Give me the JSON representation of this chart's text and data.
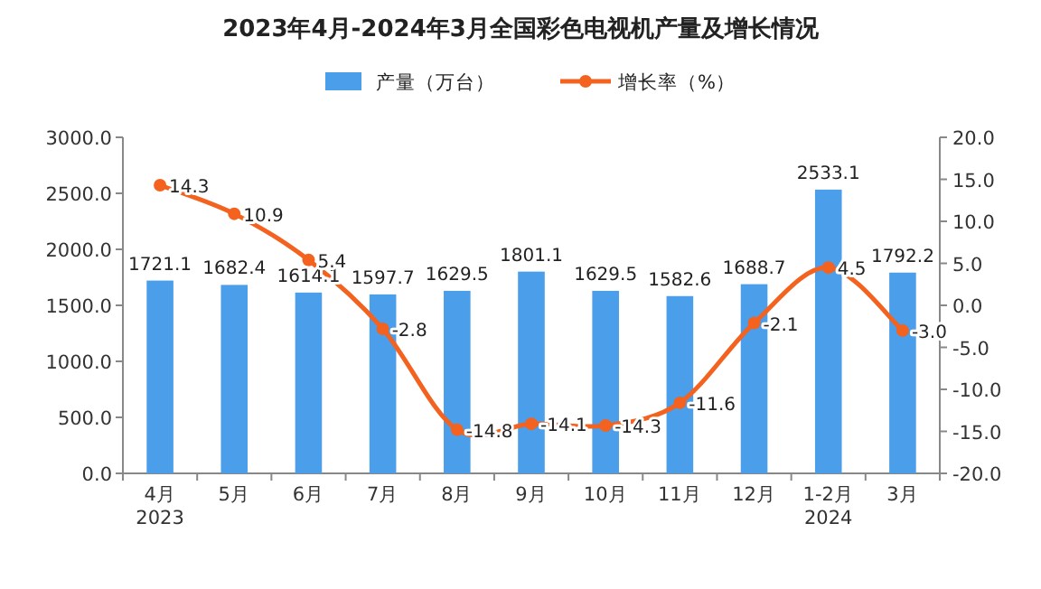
{
  "chart_data": {
    "type": "bar",
    "title": "2023年4月-2024年3月全国彩色电视机产量及增长情况",
    "categories": [
      "4月\n2023",
      "5月",
      "6月",
      "7月",
      "8月",
      "9月",
      "10月",
      "11月",
      "12月",
      "1-2月\n2024",
      "3月"
    ],
    "series": [
      {
        "name": "产量（万台）",
        "color": "#4a9eea",
        "values": [
          1721.1,
          1682.4,
          1614.1,
          1597.7,
          1629.5,
          1801.1,
          1629.5,
          1582.6,
          1688.7,
          2533.1,
          1792.2
        ],
        "value_labels": [
          "1721.1",
          "1682.4",
          "1614.1",
          "1597.7",
          "1629.5",
          "1801.1",
          "1629.5",
          "1582.6",
          "1688.7",
          "2533.1",
          "1792.2"
        ]
      },
      {
        "name": "增长率（%）",
        "type": "line",
        "axis": "y2",
        "color": "#f4621f",
        "marker": "circle",
        "values": [
          14.3,
          10.9,
          5.4,
          -2.8,
          -14.8,
          -14.1,
          -14.3,
          -11.6,
          -2.1,
          4.5,
          -3.0
        ],
        "value_labels": [
          "14.3",
          "10.9",
          "5.4",
          "-2.8",
          "-14.8",
          "-14.1",
          "-14.3",
          "-11.6",
          "-2.1",
          "4.5",
          "-3.0"
        ]
      }
    ],
    "ylim": [
      0,
      3000
    ],
    "yticks": [
      {
        "value": 0,
        "label": "0.0"
      },
      {
        "value": 500,
        "label": "500.0"
      },
      {
        "value": 1000,
        "label": "1000.0"
      },
      {
        "value": 1500,
        "label": "1500.0"
      },
      {
        "value": 2000,
        "label": "2000.0"
      },
      {
        "value": 2500,
        "label": "2500.0"
      },
      {
        "value": 3000,
        "label": "3000.0"
      }
    ],
    "y2lim": [
      -20,
      20
    ],
    "y2ticks": [
      {
        "value": -20,
        "label": "-20.0"
      },
      {
        "value": -15,
        "label": "-15.0"
      },
      {
        "value": -10,
        "label": "-10.0"
      },
      {
        "value": -5,
        "label": "-5.0"
      },
      {
        "value": 0,
        "label": "0.0"
      },
      {
        "value": 5,
        "label": "5.0"
      },
      {
        "value": 10,
        "label": "10.0"
      },
      {
        "value": 15,
        "label": "15.0"
      },
      {
        "value": 20,
        "label": "20.0"
      }
    ],
    "legend": "top",
    "grid": false
  }
}
